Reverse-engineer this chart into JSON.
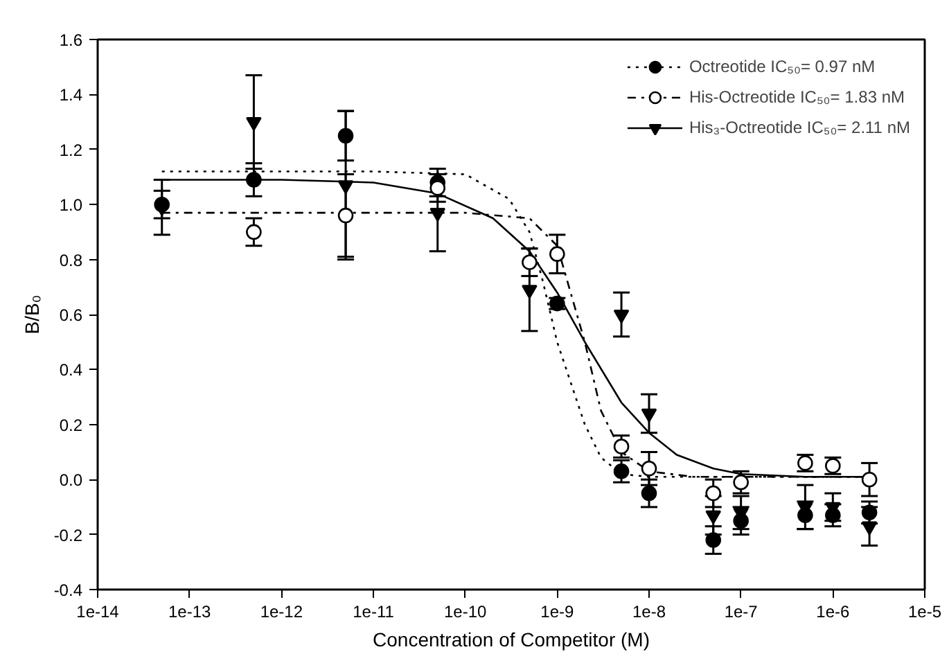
{
  "chart_data": {
    "type": "scatter",
    "xlabel": "Concentration of Competitor (M)",
    "ylabel": "B/B₀",
    "x": [
      5e-14,
      5e-13,
      5e-12,
      5e-11,
      5e-10,
      1e-09,
      5e-09,
      1e-08,
      5e-08,
      1e-07,
      5e-07,
      1e-06,
      2.5e-06
    ],
    "xlim": [
      1e-14,
      1e-05
    ],
    "xticks": [
      {
        "value": 1e-14,
        "label": "1e-14"
      },
      {
        "value": 1e-13,
        "label": "1e-13"
      },
      {
        "value": 1e-12,
        "label": "1e-12"
      },
      {
        "value": 1e-11,
        "label": "1e-11"
      },
      {
        "value": 1e-10,
        "label": "1e-10"
      },
      {
        "value": 1e-09,
        "label": "1e-9"
      },
      {
        "value": 1e-08,
        "label": "1e-8"
      },
      {
        "value": 1e-07,
        "label": "1e-7"
      },
      {
        "value": 1e-06,
        "label": "1e-6"
      },
      {
        "value": 1e-05,
        "label": "1e-5"
      }
    ],
    "ylim": [
      -0.4,
      1.6
    ],
    "yticks": [
      {
        "value": -0.4,
        "label": "-0.4"
      },
      {
        "value": -0.2,
        "label": "-0.2"
      },
      {
        "value": 0,
        "label": "0.0"
      },
      {
        "value": 0.2,
        "label": "0.2"
      },
      {
        "value": 0.4,
        "label": "0.4"
      },
      {
        "value": 0.6,
        "label": "0.6"
      },
      {
        "value": 0.8,
        "label": "0.8"
      },
      {
        "value": 1.0,
        "label": "1.0"
      },
      {
        "value": 1.2,
        "label": "1.2"
      },
      {
        "value": 1.4,
        "label": "1.4"
      },
      {
        "value": 1.6,
        "label": "1.6"
      }
    ],
    "log": "x",
    "grid": false,
    "legend": "top right",
    "series": [
      {
        "type": "line",
        "color": "#000000",
        "line_style": "dotted",
        "marker": "none",
        "x": [
          5e-14,
          1e-11,
          1e-10,
          3e-10,
          5e-10,
          7e-10,
          1e-09,
          2e-09,
          3e-09,
          5e-09,
          1e-08,
          1e-07,
          2.5e-06
        ],
        "values": [
          1.12,
          1.12,
          1.11,
          1.02,
          0.9,
          0.72,
          0.5,
          0.2,
          0.08,
          0.02,
          0.01,
          0.01,
          0.01
        ]
      },
      {
        "type": "line",
        "color": "#000000",
        "line_style": "dashed",
        "marker": "none",
        "x": [
          5e-14,
          1e-10,
          5e-10,
          1e-09,
          2e-09,
          3e-09,
          5e-09,
          1e-08,
          3e-08,
          1e-07,
          2.5e-06
        ],
        "values": [
          0.97,
          0.97,
          0.95,
          0.85,
          0.5,
          0.25,
          0.1,
          0.03,
          0.01,
          0.01,
          0.01
        ]
      },
      {
        "type": "line",
        "color": "#000000",
        "line_style": "solid",
        "marker": "none",
        "x": [
          5e-14,
          1e-12,
          1e-11,
          5e-11,
          2e-10,
          5e-10,
          1e-09,
          2e-09,
          5e-09,
          1e-08,
          2e-08,
          5e-08,
          1e-07,
          5e-07,
          2.5e-06
        ],
        "values": [
          1.09,
          1.09,
          1.08,
          1.04,
          0.95,
          0.83,
          0.68,
          0.5,
          0.28,
          0.17,
          0.09,
          0.04,
          0.02,
          0.01,
          0.01
        ]
      },
      {
        "name": "Octreotide IC₅₀= 0.97 nM",
        "color": "#000000",
        "marker": "circle",
        "values": [
          1.0,
          1.09,
          1.25,
          1.08,
          null,
          0.64,
          0.03,
          -0.05,
          -0.22,
          -0.15,
          -0.13,
          -0.13,
          -0.12
        ],
        "errors": [
          0.05,
          0.06,
          0.09,
          0.05,
          null,
          0.02,
          0.04,
          0.05,
          0.05,
          0.05,
          0.05,
          0.04,
          0.04
        ]
      },
      {
        "name": "His-Octreotide IC₅₀= 1.83 nM",
        "color": "#ffffff",
        "marker": "circle",
        "values": [
          null,
          0.9,
          0.96,
          1.06,
          0.79,
          0.82,
          0.12,
          0.04,
          -0.05,
          -0.01,
          0.06,
          0.05,
          0.0
        ],
        "errors": [
          null,
          0.05,
          0.15,
          0.05,
          0.05,
          0.07,
          0.04,
          0.06,
          0.05,
          0.04,
          0.03,
          0.03,
          0.06
        ]
      },
      {
        "name": "His₃-Octreotide IC₅₀= 2.11 nM",
        "color": "#000000",
        "marker": "triangle",
        "values": [
          0.99,
          1.3,
          1.07,
          0.97,
          0.69,
          null,
          0.6,
          0.24,
          -0.13,
          -0.12,
          -0.1,
          -0.1,
          -0.17
        ],
        "errors": [
          0.1,
          0.17,
          0.27,
          0.14,
          0.15,
          null,
          0.08,
          0.07,
          0.07,
          0.06,
          0.08,
          0.05,
          0.07
        ]
      }
    ]
  }
}
